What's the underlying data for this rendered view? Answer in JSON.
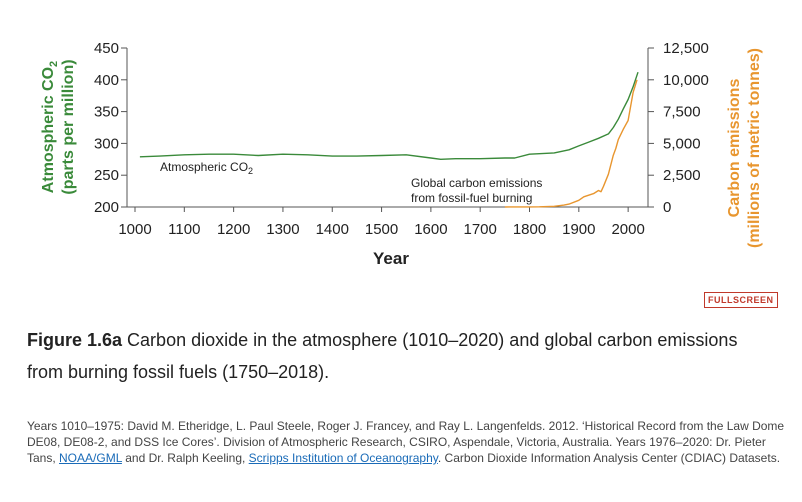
{
  "chart_data": {
    "type": "line",
    "x_range": [
      1000,
      2020
    ],
    "x_ticks": [
      "1000",
      "1100",
      "1200",
      "1300",
      "1400",
      "1500",
      "1600",
      "1700",
      "1800",
      "1900",
      "2000"
    ],
    "xlabel": "Year",
    "y_left": {
      "label_line1": "Atmospheric CO",
      "label_sub": "2",
      "label_line2": "(parts per million)",
      "range": [
        200,
        450
      ],
      "ticks": [
        "200",
        "250",
        "300",
        "350",
        "400",
        "450"
      ]
    },
    "y_right": {
      "label_line1": "Carbon emissions",
      "label_line2": "(millions of metric tonnes)",
      "range": [
        0,
        12500
      ],
      "ticks": [
        "0",
        "2,500",
        "5,000",
        "7,500",
        "10,000",
        "12,500"
      ]
    },
    "series": [
      {
        "name": "Atmospheric CO2",
        "axis": "left",
        "color": "#3a8a3a",
        "x": [
          1010,
          1050,
          1100,
          1150,
          1200,
          1250,
          1300,
          1350,
          1400,
          1450,
          1500,
          1550,
          1600,
          1620,
          1650,
          1700,
          1750,
          1770,
          1800,
          1850,
          1880,
          1900,
          1920,
          1940,
          1960,
          1970,
          1980,
          1990,
          2000,
          2010,
          2020
        ],
        "y": [
          279,
          280,
          282,
          283,
          283,
          281,
          283,
          282,
          280,
          280,
          281,
          282,
          277,
          275,
          276,
          276,
          277,
          277,
          283,
          285,
          290,
          296,
          302,
          308,
          315,
          325,
          338,
          354,
          369,
          389,
          412
        ]
      },
      {
        "name": "Global carbon emissions from fossil-fuel burning",
        "axis": "right",
        "color": "#e8962f",
        "x": [
          1750,
          1780,
          1800,
          1820,
          1850,
          1870,
          1880,
          1900,
          1910,
          1920,
          1930,
          1940,
          1945,
          1950,
          1960,
          1970,
          1975,
          1980,
          1990,
          2000,
          2010,
          2018
        ],
        "y": [
          3,
          5,
          8,
          15,
          54,
          150,
          230,
          530,
          800,
          930,
          1050,
          1300,
          1200,
          1630,
          2580,
          4070,
          4600,
          5300,
          6100,
          6800,
          9000,
          10000
        ]
      }
    ],
    "annotations": {
      "co2_label": "Atmospheric CO",
      "co2_label_sub": "2",
      "emissions_label_line1": "Global carbon emissions",
      "emissions_label_line2": "from fossil-fuel burning"
    }
  },
  "fullscreen_label": "FULLSCREEN",
  "caption": {
    "figure_label": "Figure 1.6a",
    "text": " Carbon dioxide in the atmosphere (1010–2020) and global carbon emissions from burning fossil fuels (1750–2018)."
  },
  "source": {
    "part1": "Years 1010–1975: David M. Etheridge, L. Paul Steele, Roger J. Francey, and Ray L. Langenfelds. 2012. ‘Historical Record from the Law Dome DE08, DE08-2, and DSS Ice Cores’. Division of Atmospheric Research, CSIRO, Aspendale, Victoria, Australia. Years 1976–2020: Dr. Pieter Tans, ",
    "link1": "NOAA/GML",
    "part2": " and Dr. Ralph Keeling, ",
    "link2": "Scripps Institution of Oceanography",
    "part3": ". Carbon Dioxide Information Analysis Center (CDIAC) Datasets."
  }
}
